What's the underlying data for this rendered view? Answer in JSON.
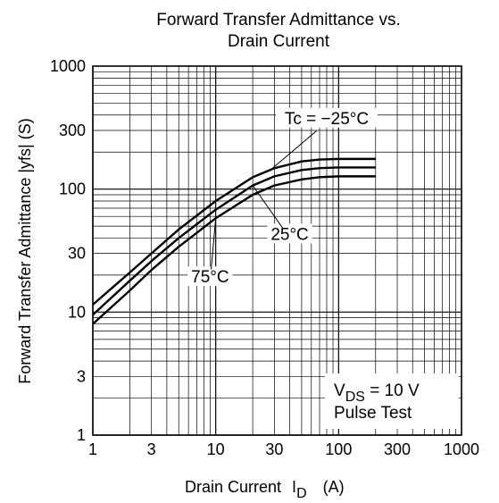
{
  "chart_data": {
    "type": "line",
    "title_line1": "Forward Transfer Admittance vs.",
    "title_line2": "Drain Current",
    "xlabel_main": "Drain Current",
    "xlabel_symbol": "I",
    "xlabel_sub": "D",
    "xlabel_unit": "(A)",
    "ylabel": "Forward Transfer Admittance |yfs|  (S)",
    "xscale": "log",
    "yscale": "log",
    "xlim": [
      1,
      1000
    ],
    "ylim": [
      1,
      1000
    ],
    "grid": true,
    "xticks": [
      {
        "value": 1,
        "label": "1"
      },
      {
        "value": 3,
        "label": "3"
      },
      {
        "value": 10,
        "label": "10"
      },
      {
        "value": 30,
        "label": "30"
      },
      {
        "value": 100,
        "label": "100"
      },
      {
        "value": 300,
        "label": "300"
      },
      {
        "value": 1000,
        "label": "1000"
      }
    ],
    "yticks": [
      {
        "value": 1,
        "label": "1"
      },
      {
        "value": 3,
        "label": "3"
      },
      {
        "value": 10,
        "label": "10"
      },
      {
        "value": 30,
        "label": "30"
      },
      {
        "value": 100,
        "label": "100"
      },
      {
        "value": 300,
        "label": "300"
      },
      {
        "value": 1000,
        "label": "1000"
      }
    ],
    "series": [
      {
        "name": "Tc = −25°C",
        "x": [
          1,
          2,
          3,
          5,
          10,
          20,
          30,
          50,
          70,
          100,
          150,
          200
        ],
        "y": [
          11.5,
          21,
          30,
          47,
          80,
          125,
          148,
          168,
          174,
          176,
          176,
          176
        ]
      },
      {
        "name": "25°C",
        "x": [
          1,
          2,
          3,
          5,
          10,
          20,
          30,
          50,
          70,
          100,
          150,
          200
        ],
        "y": [
          9.5,
          18,
          26,
          40,
          68,
          107,
          127,
          143,
          148,
          150,
          150,
          150
        ]
      },
      {
        "name": "75°C",
        "x": [
          1,
          2,
          3,
          5,
          10,
          20,
          30,
          50,
          70,
          100,
          150,
          200
        ],
        "y": [
          8,
          15,
          22,
          34,
          58,
          90,
          107,
          120,
          125,
          127,
          127,
          127
        ]
      }
    ],
    "annotations": [
      {
        "text": "Tc = −25°C",
        "series": 0,
        "at_x": 28,
        "label_x": 80,
        "label_y": 350
      },
      {
        "text": "25°C",
        "series": 1,
        "at_x": 20,
        "label_x": 40,
        "label_y": 40
      },
      {
        "text": "75°C",
        "series": 2,
        "at_x": 10,
        "label_x": 9,
        "label_y": 18
      }
    ],
    "test_conditions": {
      "line1_main": "V",
      "line1_sub": "DS",
      "line1_rest": " = 10 V",
      "line2": "Pulse Test"
    }
  }
}
